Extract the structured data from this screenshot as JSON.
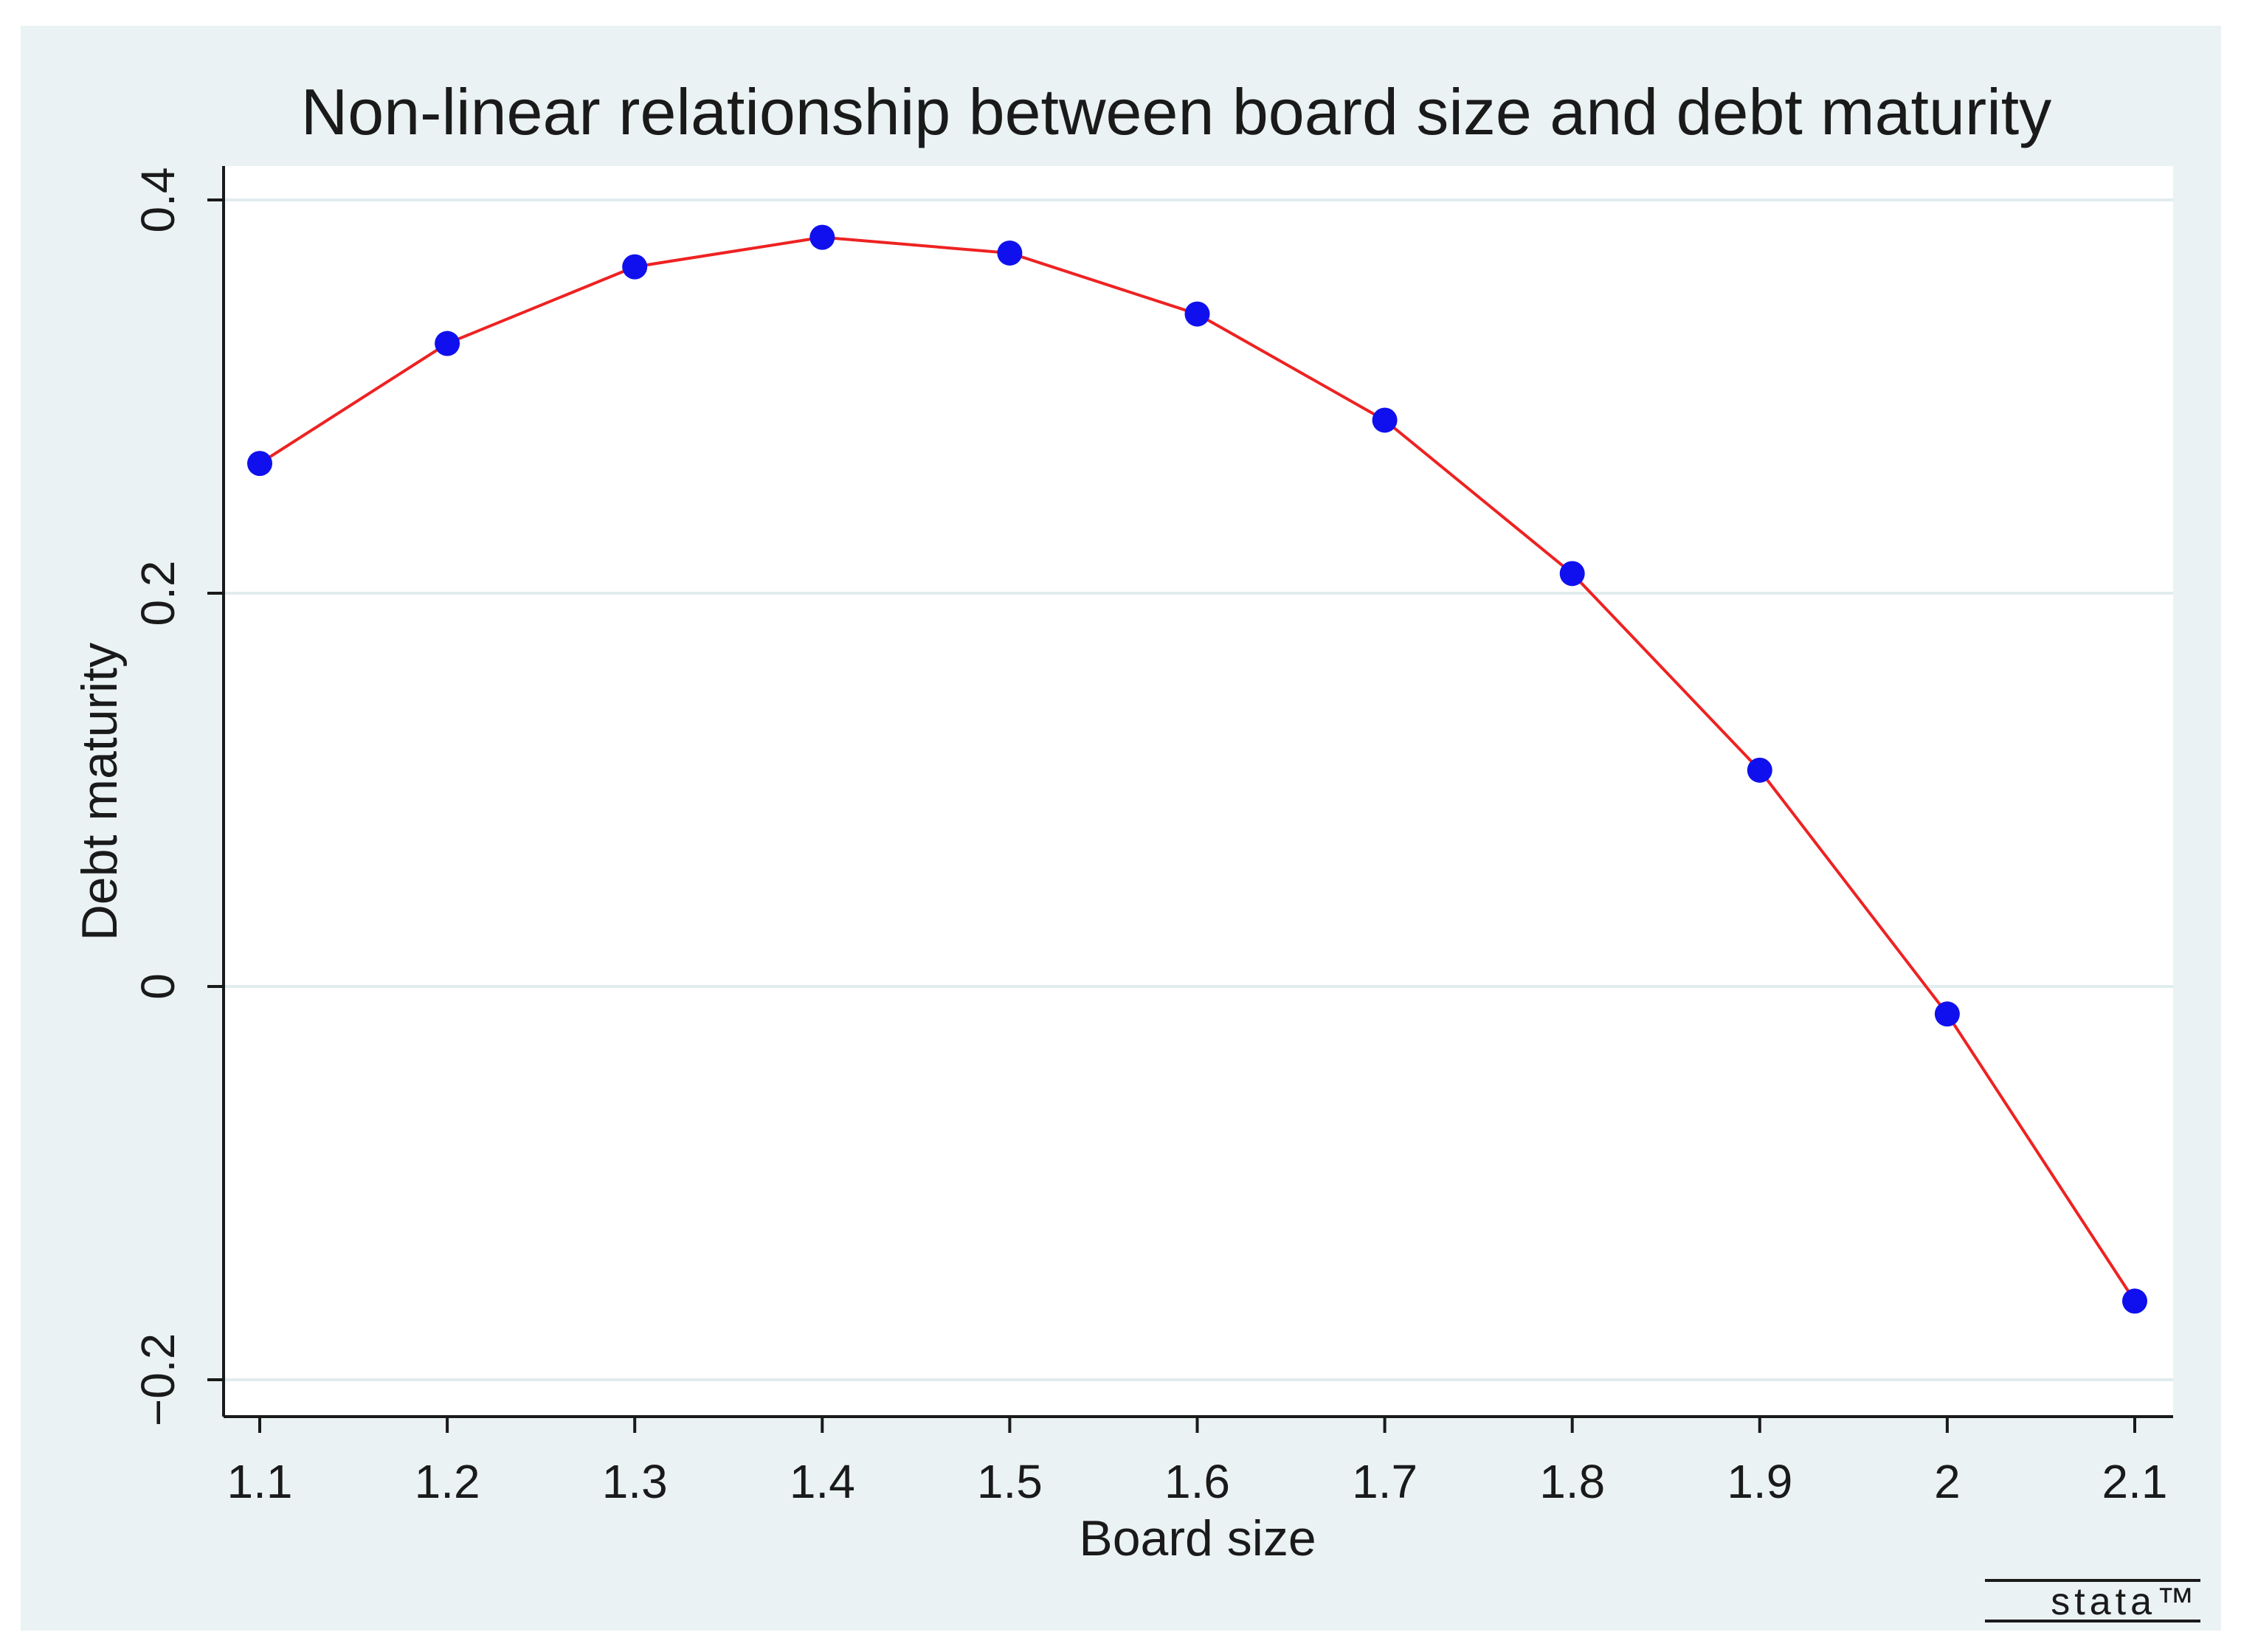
{
  "chart_data": {
    "type": "line",
    "title": "Non-linear relationship between board size and debt maturity",
    "xlabel": "Board size",
    "ylabel": "Debt maturity",
    "xlim": [
      1.1,
      2.1
    ],
    "ylim": [
      -0.2,
      0.4
    ],
    "x_ticks": [
      1.1,
      1.2,
      1.3,
      1.4,
      1.5,
      1.6,
      1.7,
      1.8,
      1.9,
      2.0,
      2.1
    ],
    "x_tick_labels": [
      "1.1",
      "1.2",
      "1.3",
      "1.4",
      "1.5",
      "1.6",
      "1.7",
      "1.8",
      "1.9",
      "2",
      "2.1"
    ],
    "y_ticks": [
      -0.2,
      0,
      0.2,
      0.4
    ],
    "y_tick_labels": [
      "−0.2",
      "0",
      "0.2",
      "0.4"
    ],
    "grid": true,
    "series": [
      {
        "x": [
          1.1,
          1.2,
          1.3,
          1.4,
          1.5,
          1.6,
          1.7,
          1.8,
          1.9,
          2.0,
          2.1
        ],
        "values": [
          0.266,
          0.327,
          0.366,
          0.381,
          0.373,
          0.342,
          0.288,
          0.21,
          0.11,
          -0.014,
          -0.16
        ],
        "line_color": "#ee2222",
        "marker_color": "#1010ee"
      }
    ],
    "colors": {
      "outer_background": "#eaf2f3",
      "plot_background": "#ffffff",
      "gridline": "#e1ecee",
      "axis": "#1a1a1a"
    }
  },
  "watermark": "stata™"
}
